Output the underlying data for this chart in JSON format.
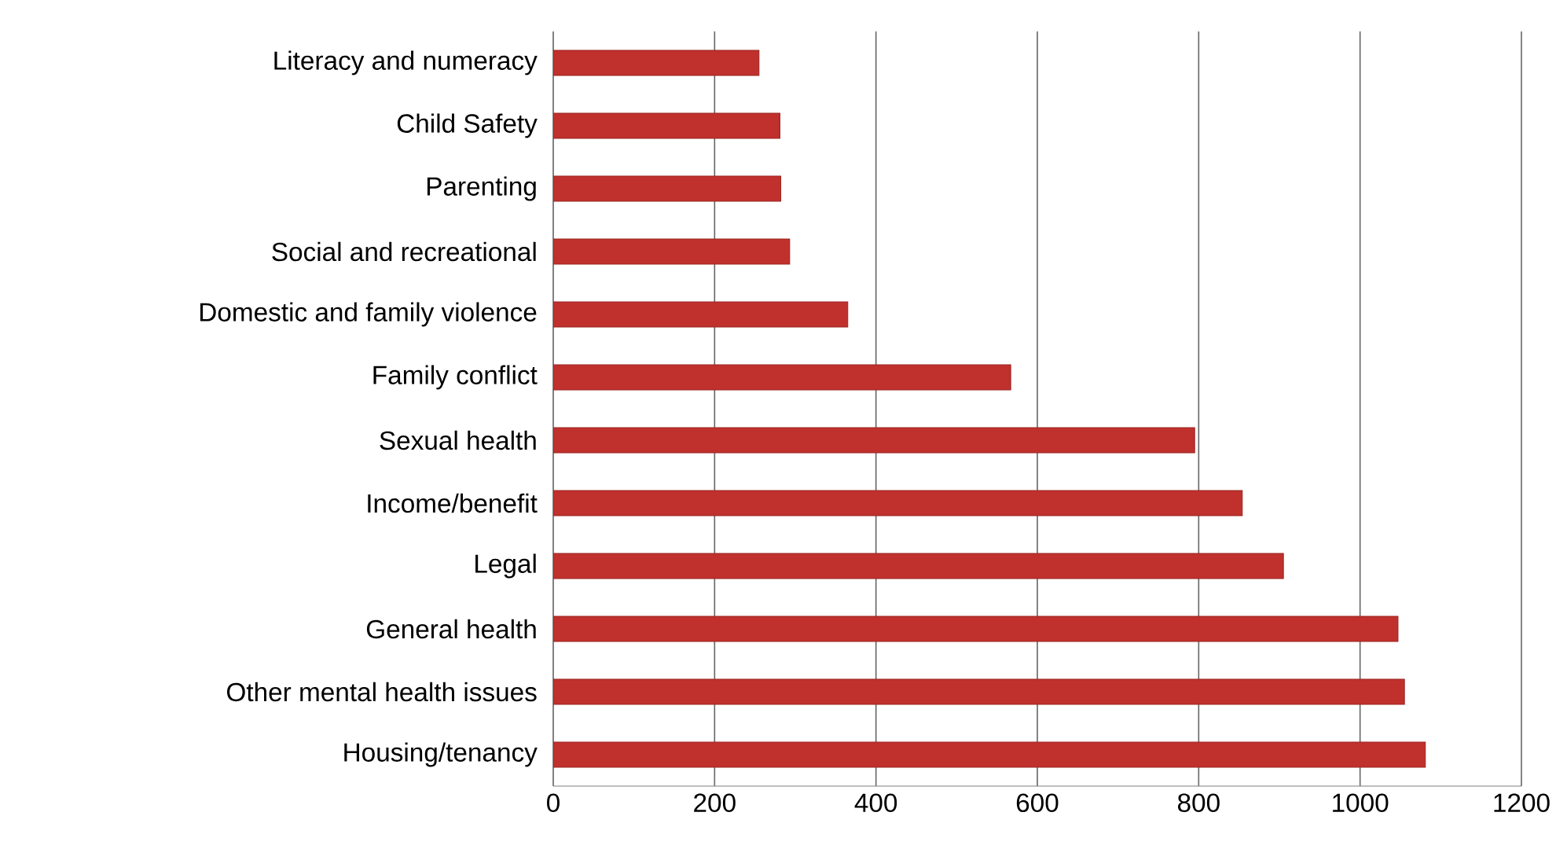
{
  "chart_data": {
    "type": "bar",
    "orientation": "horizontal",
    "categories": [
      "Literacy and numeracy",
      "Child Safety",
      "Parenting",
      "Social and recreational",
      "Domestic and family violence",
      "Family conflict",
      "Sexual health",
      "Income/benefit",
      "Legal",
      "General health",
      "Other mental health issues",
      "Housing/tenancy"
    ],
    "values": [
      255,
      281,
      282,
      293,
      365,
      567,
      795,
      854,
      905,
      1047,
      1055,
      1081
    ],
    "color": "#c0302c",
    "xlim": [
      0,
      1200
    ],
    "xticks": [
      0,
      200,
      400,
      600,
      800,
      1000,
      1200
    ],
    "grid": "x"
  }
}
